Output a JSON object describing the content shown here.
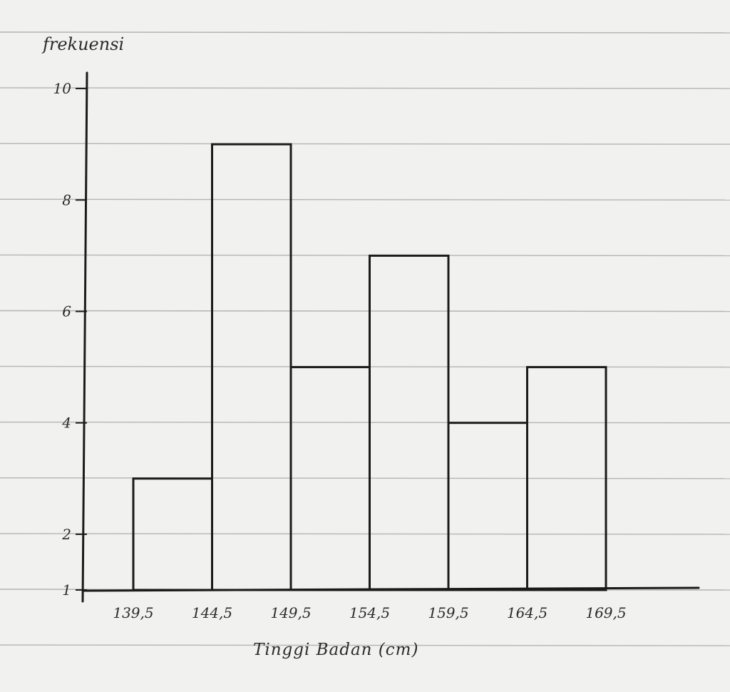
{
  "chart_data": {
    "type": "bar",
    "ylabel": "frekuensi",
    "xlabel": "Tinggi Badan (cm)",
    "x_ticks": [
      "139,5",
      "144,5",
      "149,5",
      "154,5",
      "159,5",
      "164,5",
      "169,5"
    ],
    "x_edges": [
      139.5,
      144.5,
      149.5,
      154.5,
      159.5,
      164.5,
      169.5
    ],
    "y_ticks": [
      "1",
      "2",
      "4",
      "6",
      "8",
      "10"
    ],
    "series": [
      {
        "values": [
          3,
          9,
          5,
          7,
          4,
          5
        ]
      }
    ],
    "bins": [
      {
        "from": 139.5,
        "to": 144.5,
        "value": 3
      },
      {
        "from": 144.5,
        "to": 149.5,
        "value": 9
      },
      {
        "from": 149.5,
        "to": 154.5,
        "value": 5
      },
      {
        "from": 154.5,
        "to": 159.5,
        "value": 7
      },
      {
        "from": 159.5,
        "to": 164.5,
        "value": 4
      },
      {
        "from": 164.5,
        "to": 169.5,
        "value": 5
      }
    ],
    "ylim": [
      1,
      10
    ],
    "grid": false,
    "legend": "none"
  }
}
